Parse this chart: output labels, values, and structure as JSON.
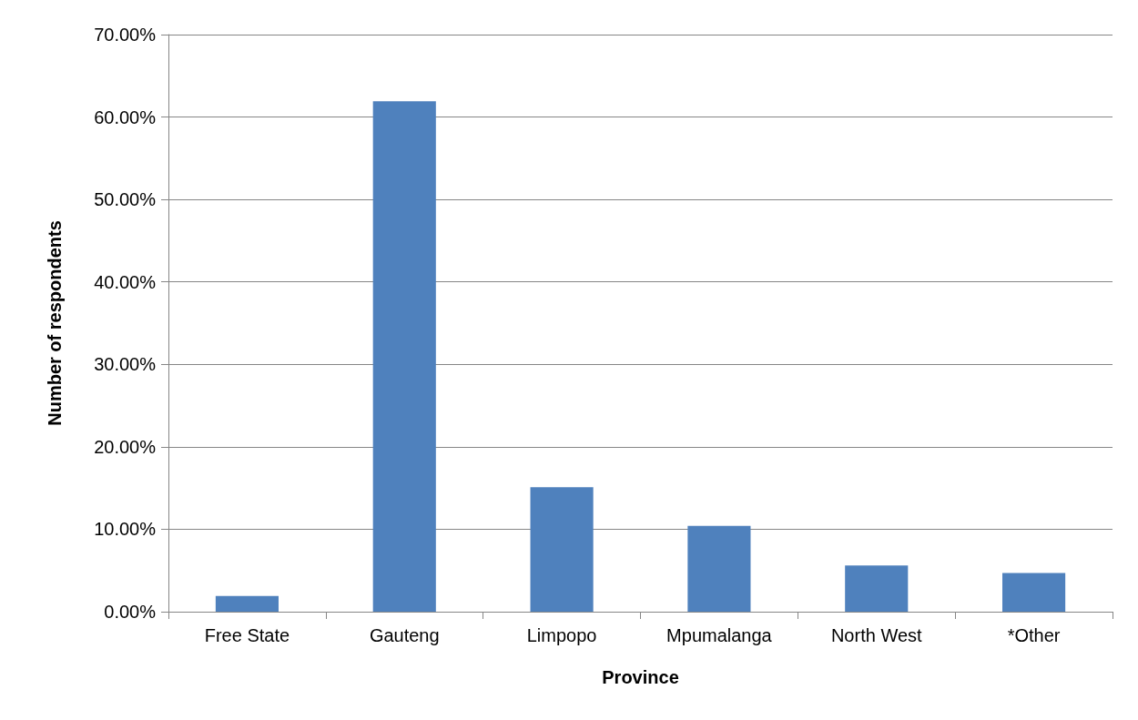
{
  "chart_data": {
    "type": "bar",
    "xlabel": "Province",
    "ylabel": "Number of respondents",
    "categories": [
      "Free State",
      "Gauteng",
      "Limpopo",
      "Mpumalanga",
      "North West",
      "*Other"
    ],
    "values": [
      1.9,
      61.9,
      15.1,
      10.4,
      5.6,
      4.7
    ],
    "color": "#4f81bd",
    "ylim": [
      0,
      70
    ],
    "yticks": [
      {
        "value": 0,
        "label": "0.00%"
      },
      {
        "value": 10,
        "label": "10.00%"
      },
      {
        "value": 20,
        "label": "20.00%"
      },
      {
        "value": 30,
        "label": "30.00%"
      },
      {
        "value": 40,
        "label": "40.00%"
      },
      {
        "value": 50,
        "label": "50.00%"
      },
      {
        "value": 60,
        "label": "60.00%"
      },
      {
        "value": 70,
        "label": "70.00%"
      }
    ],
    "grid": "y"
  }
}
